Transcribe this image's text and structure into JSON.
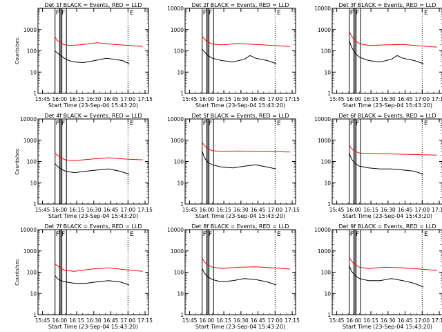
{
  "chart_data": [
    {
      "type": "line",
      "title": "Det 1f BLACK = Events, RED = LLD",
      "xlabel": "Start Time (23-Sep-04 15:43:20)",
      "ylabel": "Counts/sec",
      "yscale": "log",
      "ylim": [
        1,
        10000
      ],
      "xlim_min": [
        -2,
        95
      ],
      "x_ticks": [
        "15:45",
        "16:00",
        "16:15",
        "16:30",
        "16:45",
        "17:00",
        "17:15"
      ],
      "y_ticks": [
        "1",
        "10",
        "100",
        "1000"
      ],
      "markers": {
        "solid": [
          13,
          17,
          18,
          19,
          23
        ],
        "dotted": [
          77
        ],
        "letters": {
          "13": "F",
          "18": "F",
          "78": "E"
        }
      },
      "series": [
        {
          "color": "#ff0000",
          "x": [
            13,
            15,
            18,
            20,
            25,
            35,
            50,
            65,
            78,
            90
          ],
          "y": [
            450,
            300,
            250,
            200,
            180,
            190,
            240,
            200,
            180,
            160
          ]
        },
        {
          "color": "#000000",
          "x": [
            13,
            15,
            18,
            21,
            25,
            30,
            38,
            48,
            58,
            65,
            72,
            78
          ],
          "y": [
            100,
            80,
            60,
            45,
            35,
            30,
            28,
            35,
            45,
            40,
            35,
            25
          ]
        }
      ]
    },
    {
      "type": "line",
      "title": "Det 2f BLACK = Events, RED = LLD",
      "xlabel": "Start Time (23-Sep-04 15:43:20)",
      "ylabel": "",
      "yscale": "log",
      "ylim": [
        1,
        10000
      ],
      "xlim_min": [
        -2,
        95
      ],
      "x_ticks": [
        "15:45",
        "16:00",
        "16:15",
        "16:30",
        "16:45",
        "17:00",
        "17:15"
      ],
      "y_ticks": [
        "1",
        "10",
        "100",
        "1000",
        "10000"
      ],
      "markers": {
        "solid": [
          13,
          17,
          18,
          19,
          23
        ],
        "dotted": [
          77
        ],
        "letters": {
          "13": "F",
          "18": "F",
          "78": "E"
        }
      },
      "series": [
        {
          "color": "#ff0000",
          "x": [
            13,
            15,
            18,
            22,
            30,
            45,
            60,
            75,
            90
          ],
          "y": [
            500,
            350,
            260,
            210,
            190,
            220,
            200,
            180,
            160
          ]
        },
        {
          "color": "#000000",
          "x": [
            13,
            15,
            18,
            22,
            30,
            40,
            50,
            55,
            60,
            70,
            78
          ],
          "y": [
            120,
            90,
            60,
            45,
            35,
            30,
            40,
            60,
            45,
            35,
            25
          ]
        }
      ]
    },
    {
      "type": "line",
      "title": "Det 3f BLACK = Events, RED = LLD",
      "xlabel": "Start Time (23-Sep-04 15:43:20)",
      "ylabel": "",
      "yscale": "log",
      "ylim": [
        1,
        10000
      ],
      "xlim_min": [
        -2,
        95
      ],
      "x_ticks": [
        "15:45",
        "16:00",
        "16:15",
        "16:30",
        "16:45",
        "17:00",
        "17:15"
      ],
      "y_ticks": [
        "1",
        "10",
        "100",
        "1000",
        "10000"
      ],
      "markers": {
        "solid": [
          13,
          17,
          18,
          19,
          23
        ],
        "dotted": [
          77
        ],
        "letters": {
          "13": "F",
          "18": "F",
          "78": "E"
        }
      },
      "series": [
        {
          "color": "#ff0000",
          "x": [
            13,
            15,
            18,
            22,
            30,
            45,
            60,
            75,
            90
          ],
          "y": [
            800,
            500,
            300,
            220,
            180,
            190,
            200,
            170,
            150
          ]
        },
        {
          "color": "#000000",
          "x": [
            13,
            15,
            18,
            22,
            30,
            40,
            50,
            55,
            60,
            70,
            78
          ],
          "y": [
            300,
            150,
            80,
            50,
            35,
            30,
            40,
            60,
            45,
            35,
            25
          ]
        }
      ]
    },
    {
      "type": "line",
      "title": "Det 4f BLACK = Events, RED = LLD",
      "xlabel": "Start Time (23-Sep-04 15:43:20)",
      "ylabel": "Counts/sec",
      "yscale": "log",
      "ylim": [
        1,
        10000
      ],
      "xlim_min": [
        -2,
        95
      ],
      "x_ticks": [
        "15:45",
        "16:00",
        "16:15",
        "16:30",
        "16:45",
        "17:00",
        "17:15"
      ],
      "y_ticks": [
        "1",
        "10",
        "100",
        "1000",
        "10000"
      ],
      "markers": {
        "solid": [
          13,
          17,
          18,
          19,
          23
        ],
        "dotted": [
          77
        ],
        "letters": {
          "13": "F",
          "18": "F",
          "78": "E"
        }
      },
      "series": [
        {
          "color": "#ff0000",
          "x": [
            13,
            15,
            18,
            22,
            30,
            45,
            60,
            75,
            90
          ],
          "y": [
            250,
            200,
            150,
            120,
            110,
            130,
            150,
            130,
            120
          ]
        },
        {
          "color": "#000000",
          "x": [
            13,
            15,
            18,
            22,
            30,
            40,
            50,
            60,
            70,
            78
          ],
          "y": [
            80,
            60,
            45,
            35,
            30,
            35,
            40,
            45,
            35,
            25
          ]
        }
      ]
    },
    {
      "type": "line",
      "title": "Det 5f BLACK = Events, RED = LLD",
      "xlabel": "Start Time (23-Sep-04 15:43:20)",
      "ylabel": "",
      "yscale": "log",
      "ylim": [
        1,
        10000
      ],
      "xlim_min": [
        -2,
        95
      ],
      "x_ticks": [
        "15:45",
        "16:00",
        "16:15",
        "16:30",
        "16:45",
        "17:00",
        "17:15"
      ],
      "y_ticks": [
        "1",
        "10",
        "100",
        "1000",
        "10000"
      ],
      "markers": {
        "solid": [
          13,
          17,
          18,
          19,
          23
        ],
        "dotted": [
          77
        ],
        "letters": {
          "13": "F",
          "18": "F",
          "78": "E"
        }
      },
      "series": [
        {
          "color": "#ff0000",
          "x": [
            13,
            15,
            18,
            22,
            30,
            45,
            60,
            75,
            90
          ],
          "y": [
            800,
            550,
            400,
            320,
            300,
            310,
            300,
            290,
            280
          ]
        },
        {
          "color": "#000000",
          "x": [
            13,
            15,
            18,
            22,
            30,
            40,
            50,
            60,
            70,
            78
          ],
          "y": [
            300,
            150,
            90,
            70,
            55,
            50,
            60,
            70,
            55,
            45
          ]
        }
      ]
    },
    {
      "type": "line",
      "title": "Det 6f BLACK = Events, RED = LLD",
      "xlabel": "Start Time (23-Sep-04 15:43:20)",
      "ylabel": "",
      "yscale": "log",
      "ylim": [
        1,
        10000
      ],
      "xlim_min": [
        -2,
        95
      ],
      "x_ticks": [
        "15:45",
        "16:00",
        "16:15",
        "16:30",
        "16:45",
        "17:00",
        "17:15"
      ],
      "y_ticks": [
        "1",
        "10",
        "100",
        "1000",
        "10000"
      ],
      "markers": {
        "solid": [
          13,
          17,
          18,
          19,
          23
        ],
        "dotted": [
          77
        ],
        "letters": {
          "13": "F",
          "18": "F",
          "78": "E"
        }
      },
      "series": [
        {
          "color": "#ff0000",
          "x": [
            13,
            15,
            18,
            22,
            30,
            45,
            60,
            75,
            90
          ],
          "y": [
            600,
            400,
            300,
            250,
            240,
            230,
            220,
            210,
            200
          ]
        },
        {
          "color": "#000000",
          "x": [
            13,
            15,
            18,
            22,
            30,
            40,
            50,
            60,
            70,
            78
          ],
          "y": [
            250,
            130,
            80,
            60,
            50,
            45,
            45,
            40,
            35,
            25
          ]
        }
      ]
    },
    {
      "type": "line",
      "title": "Det 7f BLACK = Events, RED = LLD",
      "xlabel": "Start Time (23-Sep-04 15:43:20)",
      "ylabel": "Counts/sec",
      "yscale": "log",
      "ylim": [
        1,
        10000
      ],
      "xlim_min": [
        -2,
        95
      ],
      "x_ticks": [
        "15:45",
        "16:00",
        "16:15",
        "16:30",
        "16:45",
        "17:00",
        "17:15"
      ],
      "y_ticks": [
        "1",
        "10",
        "100",
        "1000",
        "10000"
      ],
      "markers": {
        "solid": [
          13,
          17,
          18,
          19,
          23
        ],
        "dotted": [
          77
        ],
        "letters": {
          "13": "F",
          "18": "F",
          "78": "E"
        }
      },
      "series": [
        {
          "color": "#ff0000",
          "x": [
            13,
            15,
            18,
            22,
            30,
            45,
            60,
            75,
            90
          ],
          "y": [
            250,
            200,
            150,
            120,
            110,
            140,
            160,
            130,
            110
          ]
        },
        {
          "color": "#000000",
          "x": [
            13,
            15,
            18,
            22,
            30,
            40,
            50,
            60,
            70,
            78
          ],
          "y": [
            70,
            50,
            40,
            35,
            30,
            30,
            35,
            40,
            35,
            25
          ]
        }
      ]
    },
    {
      "type": "line",
      "title": "Det 8f BLACK = Events, RED = LLD",
      "xlabel": "Start Time (23-Sep-04 15:43:20)",
      "ylabel": "",
      "yscale": "log",
      "ylim": [
        1,
        10000
      ],
      "xlim_min": [
        -2,
        95
      ],
      "x_ticks": [
        "15:45",
        "16:00",
        "16:15",
        "16:30",
        "16:45",
        "17:00",
        "17:15"
      ],
      "y_ticks": [
        "1",
        "10",
        "100",
        "1000",
        "10000"
      ],
      "markers": {
        "solid": [
          13,
          17,
          18,
          19,
          23
        ],
        "dotted": [
          77
        ],
        "letters": {
          "13": "F",
          "18": "F",
          "78": "E"
        }
      },
      "series": [
        {
          "color": "#ff0000",
          "x": [
            13,
            15,
            18,
            22,
            30,
            45,
            60,
            75,
            90
          ],
          "y": [
            450,
            300,
            220,
            170,
            150,
            170,
            180,
            160,
            140
          ]
        },
        {
          "color": "#000000",
          "x": [
            13,
            15,
            18,
            22,
            30,
            40,
            50,
            60,
            70,
            78
          ],
          "y": [
            150,
            90,
            60,
            45,
            35,
            40,
            50,
            45,
            35,
            25
          ]
        }
      ]
    },
    {
      "type": "line",
      "title": "Det 9f BLACK = Events, RED = LLD",
      "xlabel": "Start Time (23-Sep-04 15:43:20)",
      "ylabel": "",
      "yscale": "log",
      "ylim": [
        1,
        10000
      ],
      "xlim_min": [
        -2,
        95
      ],
      "x_ticks": [
        "15:45",
        "16:00",
        "16:15",
        "16:30",
        "16:45",
        "17:00",
        "17:15"
      ],
      "y_ticks": [
        "1",
        "10",
        "100",
        "1000",
        "10000"
      ],
      "markers": {
        "solid": [
          13,
          17,
          18,
          19,
          23
        ],
        "dotted": [
          77
        ],
        "letters": {
          "13": "F",
          "18": "F",
          "78": "E"
        }
      },
      "series": [
        {
          "color": "#ff0000",
          "x": [
            13,
            15,
            18,
            22,
            30,
            45,
            60,
            75,
            90
          ],
          "y": [
            500,
            330,
            230,
            170,
            150,
            170,
            160,
            140,
            120
          ]
        },
        {
          "color": "#000000",
          "x": [
            13,
            15,
            18,
            22,
            30,
            40,
            50,
            60,
            70,
            78
          ],
          "y": [
            200,
            110,
            70,
            50,
            40,
            40,
            50,
            40,
            30,
            20
          ]
        }
      ]
    }
  ]
}
